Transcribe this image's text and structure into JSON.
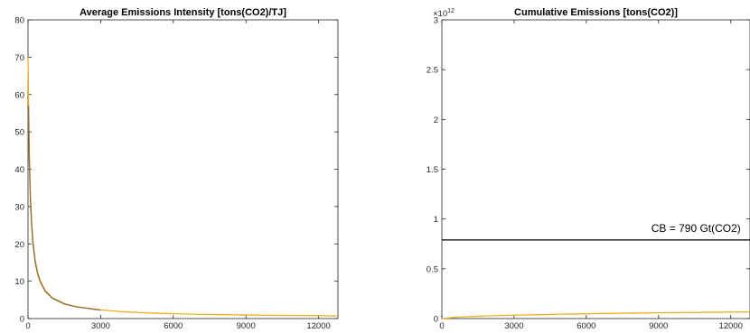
{
  "chart_data": [
    {
      "type": "line",
      "title": "Average Emissions Intensity [tons(CO2)/TJ]",
      "xlabel": "",
      "ylabel": "",
      "xlim": [
        0,
        12800
      ],
      "ylim": [
        0,
        80
      ],
      "xticks": [
        0,
        3000,
        6000,
        9000,
        12000
      ],
      "xtick_labels": [
        "0",
        "3000",
        "6000",
        "9000",
        "12000"
      ],
      "yticks": [
        0,
        10,
        20,
        30,
        40,
        50,
        60,
        70,
        80
      ],
      "ytick_labels": [
        "0",
        "10",
        "20",
        "30",
        "40",
        "50",
        "60",
        "70",
        "80"
      ],
      "grid": false,
      "series": [
        {
          "color": "#EDB120",
          "x": [
            0,
            20,
            50,
            100,
            150,
            200,
            300,
            400,
            500,
            700,
            1000,
            1500,
            2000,
            3000,
            4000,
            5000,
            6000,
            7000,
            8000,
            9000,
            10000,
            11000,
            12000,
            12800
          ],
          "y": [
            70,
            60,
            45,
            33,
            26,
            21,
            15.5,
            12.3,
            10.2,
            7.6,
            5.6,
            4.0,
            3.2,
            2.3,
            1.8,
            1.5,
            1.3,
            1.15,
            1.05,
            0.95,
            0.88,
            0.82,
            0.77,
            0.73
          ]
        },
        {
          "color": "#8C6D3F",
          "x": [
            20,
            50,
            100,
            150,
            200,
            300,
            400,
            500,
            700,
            1000,
            1500,
            2000,
            3000
          ],
          "y": [
            57,
            43,
            31.5,
            25,
            20.3,
            15,
            11.9,
            9.9,
            7.4,
            5.5,
            3.9,
            3.15,
            2.25
          ]
        }
      ]
    },
    {
      "type": "line",
      "title": "Cumulative Emissions [tons(CO2)]",
      "xlabel": "",
      "ylabel": "",
      "xlim": [
        0,
        12800
      ],
      "ylim": [
        0,
        3
      ],
      "y_exponent_base": "×10",
      "y_exponent_power": "12",
      "xticks": [
        0,
        3000,
        6000,
        9000,
        12000
      ],
      "xtick_labels": [
        "0",
        "3000",
        "6000",
        "9000",
        "12000"
      ],
      "yticks": [
        0,
        0.5,
        1,
        1.5,
        2,
        2.5,
        3
      ],
      "ytick_labels": [
        "0",
        "0.5",
        "1",
        "1.5",
        "2",
        "2.5",
        "3"
      ],
      "grid": false,
      "series": [
        {
          "color": "#000000",
          "x": [
            0,
            12800
          ],
          "y": [
            0.79,
            0.79
          ]
        },
        {
          "color": "#EDB120",
          "x": [
            0,
            500,
            1000,
            2000,
            3000,
            4000,
            5000,
            6000,
            7000,
            8000,
            9000,
            10000,
            11000,
            12000,
            12800
          ],
          "y": [
            0,
            0.012,
            0.018,
            0.027,
            0.034,
            0.039,
            0.044,
            0.048,
            0.052,
            0.055,
            0.058,
            0.061,
            0.063,
            0.065,
            0.067
          ]
        }
      ],
      "annotation": {
        "text": "CB = 790 Gt(CO2)",
        "x": 8700,
        "y": 0.87
      }
    }
  ]
}
